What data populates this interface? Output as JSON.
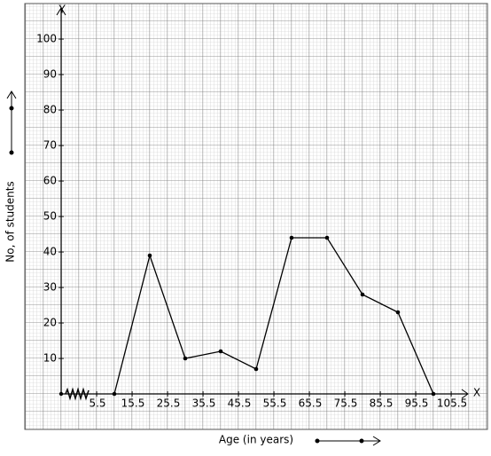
{
  "chart_data": {
    "type": "line",
    "x_label": "Age (in years)",
    "y_label": "No, of students",
    "x_axis_name": "X",
    "y_axis_name": "Y",
    "x": [
      10.5,
      20.5,
      30.5,
      40.5,
      50.5,
      60.5,
      70.5,
      80.5,
      90.5,
      100.5
    ],
    "series": [
      {
        "color": "#000000",
        "values": [
          0,
          39,
          10,
          12,
          7,
          44,
          44,
          28,
          23,
          0
        ]
      }
    ],
    "xlim": [
      -4.5,
      110.5
    ],
    "ylim": [
      0,
      109
    ],
    "xticks": [
      5.5,
      15.5,
      25.5,
      35.5,
      45.5,
      55.5,
      65.5,
      75.5,
      85.5,
      95.5,
      105.5
    ],
    "yticks": [
      10,
      20,
      30,
      40,
      50,
      60,
      70,
      80,
      90,
      100
    ],
    "grid": true
  }
}
